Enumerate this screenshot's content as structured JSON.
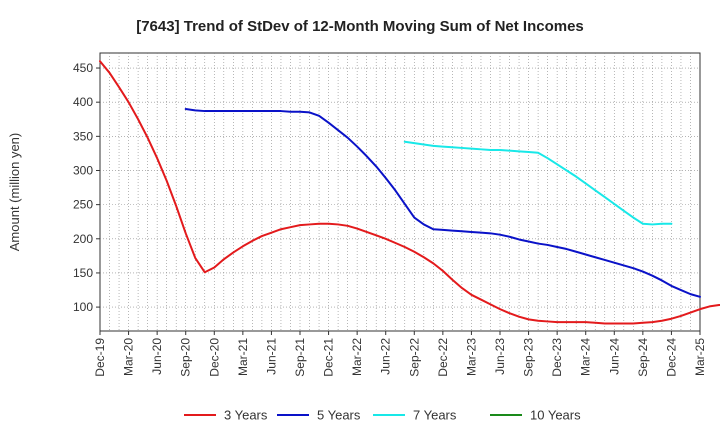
{
  "chart_data": {
    "type": "line",
    "title": "[7643]  Trend of StDev of 12-Month Moving Sum of Net Incomes",
    "xlabel": "",
    "ylabel": "Amount (million yen)",
    "ylim": [
      65,
      472
    ],
    "yticks": [
      100,
      150,
      200,
      250,
      300,
      350,
      400,
      450
    ],
    "x_tick_labels": [
      "Dec-19",
      "Mar-20",
      "Jun-20",
      "Sep-20",
      "Dec-20",
      "Mar-21",
      "Jun-21",
      "Sep-21",
      "Dec-21",
      "Mar-22",
      "Jun-22",
      "Sep-22",
      "Dec-22",
      "Mar-23",
      "Jun-23",
      "Sep-23",
      "Dec-23",
      "Mar-24",
      "Jun-24",
      "Sep-24",
      "Dec-24",
      "Mar-25"
    ],
    "x_start": "2019-12",
    "grid": true,
    "legend_position": "bottom",
    "series": [
      {
        "name": "3 Years",
        "color": "#e31a1c",
        "start": "2019-12",
        "values": [
          460,
          443,
          422,
          400,
          375,
          348,
          318,
          285,
          248,
          208,
          172,
          151,
          158,
          170,
          180,
          189,
          197,
          204,
          209,
          214,
          217,
          220,
          221,
          222,
          222,
          221,
          219,
          215,
          210,
          205,
          200,
          194,
          188,
          181,
          173,
          164,
          153,
          140,
          128,
          118,
          111,
          104,
          97,
          91,
          86,
          82,
          80,
          79,
          78,
          78,
          78,
          78,
          77,
          76,
          76,
          76,
          76,
          77,
          78,
          80,
          83,
          87,
          92,
          97,
          101,
          103,
          104
        ]
      },
      {
        "name": "5 Years",
        "color": "#0a12c8",
        "start": "2020-09",
        "values": [
          390,
          388,
          387,
          387,
          387,
          387,
          387,
          387,
          387,
          387,
          387,
          386,
          386,
          385,
          380,
          370,
          359,
          348,
          335,
          321,
          306,
          289,
          271,
          251,
          231,
          221,
          214,
          213,
          212,
          211,
          210,
          209,
          208,
          206,
          203,
          199,
          196,
          193,
          191,
          188,
          185,
          181,
          177,
          173,
          169,
          165,
          161,
          157,
          152,
          146,
          139,
          131,
          125,
          119,
          115
        ]
      },
      {
        "name": "7 Years",
        "color": "#18e8e8",
        "start": "2022-08",
        "values": [
          342,
          340,
          338,
          336,
          335,
          334,
          333,
          332,
          331,
          330,
          330,
          329,
          328,
          327,
          326,
          318,
          309,
          300,
          291,
          281,
          271,
          261,
          251,
          241,
          231,
          222,
          221,
          222,
          222
        ]
      },
      {
        "name": "10 Years",
        "color": "#1a8a1a",
        "start": "2019-12",
        "values": []
      }
    ]
  }
}
